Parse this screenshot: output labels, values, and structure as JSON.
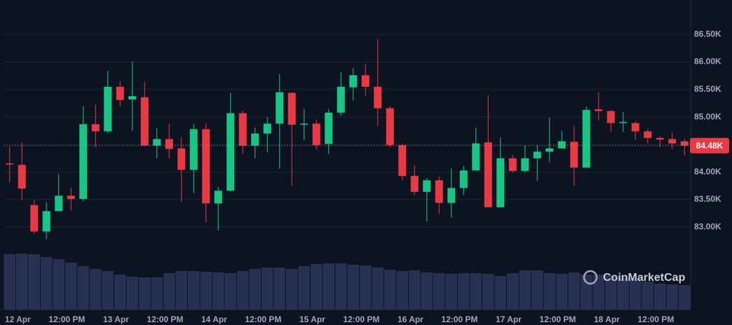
{
  "chart_data": {
    "type": "candlestick",
    "watermark": "CoinMarketCap",
    "up_color": "#16c784",
    "down_color": "#ea3943",
    "volume_color": "#283151",
    "xlim": [
      -3.5,
      164.5
    ],
    "xticks": [
      {
        "value": 0,
        "label": "12 Apr"
      },
      {
        "value": 12,
        "label": "12:00 PM"
      },
      {
        "value": 24,
        "label": "13 Apr"
      },
      {
        "value": 36,
        "label": "12:00 PM"
      },
      {
        "value": 48,
        "label": "14 Apr"
      },
      {
        "value": 60,
        "label": "12:00 PM"
      },
      {
        "value": 72,
        "label": "15 Apr"
      },
      {
        "value": 84,
        "label": "12:00 PM"
      },
      {
        "value": 96,
        "label": "16 Apr"
      },
      {
        "value": 108,
        "label": "12:00 PM"
      },
      {
        "value": 120,
        "label": "17 Apr"
      },
      {
        "value": 132,
        "label": "12:00 PM"
      },
      {
        "value": 144,
        "label": "18 Apr"
      },
      {
        "value": 156,
        "label": "12:00 PM"
      }
    ],
    "ylim": [
      81500,
      87000
    ],
    "yticks": [
      {
        "value": 83000,
        "label": "83.00K"
      },
      {
        "value": 83500,
        "label": "83.50K"
      },
      {
        "value": 84000,
        "label": "84.00K"
      },
      {
        "value": 84500,
        "label": "84.50K"
      },
      {
        "value": 85000,
        "label": "85.00K"
      },
      {
        "value": 85500,
        "label": "85.50K"
      },
      {
        "value": 86000,
        "label": "86.00K"
      },
      {
        "value": 86500,
        "label": "86.50K"
      }
    ],
    "grid": true,
    "last_price": {
      "value": 84480,
      "label": "84.48K"
    },
    "x": [
      -2,
      1,
      4,
      7,
      10,
      13,
      16,
      19,
      22,
      25,
      28,
      31,
      34,
      37,
      40,
      43,
      46,
      49,
      52,
      55,
      58,
      61,
      64,
      67,
      70,
      73,
      76,
      79,
      82,
      85,
      88,
      91,
      94,
      97,
      100,
      103,
      106,
      109,
      112,
      115,
      118,
      121,
      124,
      127,
      130,
      133,
      136,
      139,
      142,
      145,
      148,
      151,
      154,
      157,
      160,
      163
    ],
    "open": [
      84160,
      84130,
      83400,
      82920,
      83290,
      83570,
      83510,
      84870,
      84740,
      85550,
      85320,
      85360,
      84480,
      84600,
      84430,
      84040,
      84780,
      83430,
      83660,
      85070,
      84480,
      84700,
      84880,
      85440,
      84860,
      84880,
      84510,
      85080,
      85540,
      85760,
      85550,
      85160,
      84490,
      83930,
      83640,
      83850,
      83440,
      83710,
      84030,
      84540,
      83360,
      84250,
      84020,
      84250,
      84370,
      84430,
      84550,
      84080,
      85140,
      85110,
      84890,
      84890,
      84740,
      84620,
      84600,
      84560
    ],
    "high": [
      84460,
      84540,
      83500,
      83450,
      83960,
      83720,
      85200,
      85230,
      85840,
      85650,
      86010,
      85640,
      84800,
      84880,
      84630,
      84880,
      84880,
      83730,
      85440,
      85110,
      84810,
      85000,
      85780,
      85450,
      85150,
      84950,
      85150,
      85820,
      85890,
      85960,
      86420,
      85200,
      84520,
      84120,
      83890,
      83920,
      84060,
      84110,
      84810,
      85400,
      84630,
      84310,
      84480,
      84480,
      84990,
      84750,
      84840,
      85190,
      85450,
      85120,
      85090,
      84920,
      84790,
      84650,
      84720,
      84600
    ],
    "low": [
      83810,
      83500,
      82880,
      82780,
      83290,
      83300,
      83470,
      84450,
      84710,
      85190,
      84750,
      84470,
      84250,
      84250,
      83460,
      83620,
      83080,
      82940,
      83650,
      84330,
      84250,
      84360,
      84060,
      83750,
      84580,
      84410,
      84330,
      85020,
      85300,
      85380,
      84840,
      84450,
      83850,
      83580,
      83100,
      83240,
      83170,
      83580,
      84020,
      83350,
      83350,
      83990,
      83990,
      83840,
      84180,
      84430,
      83750,
      84080,
      84930,
      84730,
      84730,
      84580,
      84520,
      84450,
      84420,
      84300
    ],
    "close": [
      84140,
      83700,
      82920,
      83290,
      83570,
      83510,
      84870,
      84740,
      85550,
      85310,
      85380,
      84480,
      84600,
      84420,
      84040,
      84780,
      83430,
      83660,
      85070,
      84480,
      84700,
      84880,
      85450,
      84860,
      84880,
      84490,
      85080,
      85550,
      85760,
      85550,
      85160,
      84490,
      83930,
      83640,
      83850,
      83440,
      83710,
      84030,
      84520,
      83360,
      84250,
      84020,
      84250,
      84370,
      84430,
      84560,
      84080,
      85130,
      85110,
      84890,
      84910,
      84740,
      84620,
      84590,
      84520,
      84480
    ],
    "volume": [
      79,
      80,
      79,
      75,
      72,
      67,
      62,
      58,
      55,
      50,
      47,
      46,
      46,
      52,
      55,
      55,
      54,
      53,
      52,
      55,
      58,
      60,
      60,
      58,
      62,
      65,
      66,
      66,
      64,
      63,
      60,
      57,
      55,
      56,
      53,
      52,
      51,
      52,
      52,
      51,
      48,
      52,
      56,
      56,
      52,
      51,
      53,
      50,
      50,
      49,
      45,
      44,
      40,
      37,
      36,
      35
    ]
  }
}
